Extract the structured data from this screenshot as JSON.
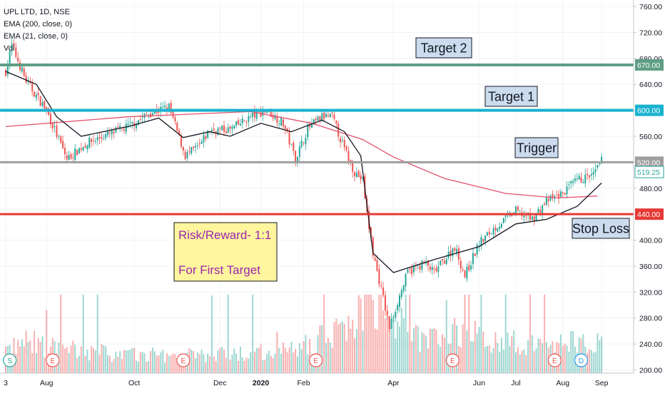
{
  "header": {
    "symbol": "UPL LTD, 1D, NSE",
    "indicators": [
      "EMA (200, close, 0)",
      "EMA (21, close, 0)",
      "Vol"
    ]
  },
  "annotations": {
    "target2": "Target 2",
    "target1": "Target 1",
    "trigger": "Trigger",
    "stop_loss": "Stop Loss",
    "risk_reward": "Risk/Reward- 1:1",
    "first_target": "For First Target"
  },
  "colors": {
    "up": "#26a69a",
    "down": "#ef5350",
    "ema200": "#e0526e",
    "ema21": "#131722",
    "target2_line": "#5e9e84",
    "target1_line": "#19b2cf",
    "trigger_line": "#9e9e9e",
    "stop_line": "#e53935",
    "callout_bg": "#ccdcee",
    "note_bg": "#fff59d",
    "note_text": "#9c27b0"
  },
  "chart_data": {
    "type": "candlestick",
    "ylim": [
      195,
      770
    ],
    "y_ticks": [
      200,
      240,
      280,
      320,
      360,
      400,
      440,
      480,
      520,
      560,
      600,
      640,
      680,
      720,
      760
    ],
    "y_tick_labels": [
      "200.00",
      "240.00",
      "280.00",
      "320.00",
      "360.00",
      "400.00",
      "440.00",
      "480.00",
      "520.00",
      "560.00",
      "600.00",
      "640.00",
      "680.00",
      "720.00",
      "760.00"
    ],
    "x_tick_labels": [
      "3",
      "Aug",
      "Oct",
      "Dec",
      "2020",
      "Feb",
      "Apr",
      "Jun",
      "Jul",
      "Aug",
      "Sep"
    ],
    "x_tick_index": [
      0,
      20,
      63,
      105,
      125,
      146,
      190,
      232,
      250,
      273,
      292
    ],
    "levels": [
      {
        "name": "Target 2",
        "value": 670,
        "label": "670.00"
      },
      {
        "name": "Target 1",
        "value": 600,
        "label": "600.00"
      },
      {
        "name": "Trigger",
        "value": 520,
        "label": "520.00"
      },
      {
        "name": "Stop Loss",
        "value": 440,
        "label": "440.00"
      }
    ],
    "last_price": {
      "value": 519.25,
      "label": "519.25"
    },
    "ema200": [
      [
        0,
        575
      ],
      [
        60,
        590
      ],
      [
        120,
        598
      ],
      [
        150,
        580
      ],
      [
        175,
        555
      ],
      [
        190,
        528
      ],
      [
        215,
        495
      ],
      [
        245,
        472
      ],
      [
        270,
        465
      ],
      [
        290,
        468
      ]
    ],
    "ema21": [
      [
        0,
        660
      ],
      [
        15,
        640
      ],
      [
        25,
        590
      ],
      [
        37,
        560
      ],
      [
        60,
        575
      ],
      [
        75,
        588
      ],
      [
        87,
        558
      ],
      [
        100,
        567
      ],
      [
        110,
        560
      ],
      [
        125,
        580
      ],
      [
        140,
        567
      ],
      [
        155,
        585
      ],
      [
        166,
        567
      ],
      [
        174,
        530
      ],
      [
        180,
        380
      ],
      [
        190,
        350
      ],
      [
        210,
        370
      ],
      [
        232,
        390
      ],
      [
        250,
        425
      ],
      [
        265,
        432
      ],
      [
        280,
        452
      ],
      [
        292,
        488
      ]
    ],
    "close_path": [
      [
        0,
        660
      ],
      [
        3,
        700
      ],
      [
        10,
        645
      ],
      [
        20,
        600
      ],
      [
        30,
        525
      ],
      [
        40,
        550
      ],
      [
        60,
        575
      ],
      [
        70,
        595
      ],
      [
        80,
        605
      ],
      [
        88,
        530
      ],
      [
        95,
        545
      ],
      [
        100,
        570
      ],
      [
        110,
        570
      ],
      [
        120,
        590
      ],
      [
        128,
        600
      ],
      [
        136,
        580
      ],
      [
        142,
        525
      ],
      [
        148,
        572
      ],
      [
        155,
        590
      ],
      [
        160,
        590
      ],
      [
        166,
        540
      ],
      [
        171,
        505
      ],
      [
        175,
        492
      ],
      [
        177,
        440
      ],
      [
        180,
        380
      ],
      [
        185,
        310
      ],
      [
        188,
        265
      ],
      [
        192,
        305
      ],
      [
        197,
        350
      ],
      [
        205,
        365
      ],
      [
        210,
        350
      ],
      [
        220,
        390
      ],
      [
        225,
        345
      ],
      [
        232,
        395
      ],
      [
        240,
        420
      ],
      [
        250,
        445
      ],
      [
        258,
        432
      ],
      [
        265,
        460
      ],
      [
        272,
        470
      ],
      [
        280,
        492
      ],
      [
        288,
        500
      ],
      [
        292,
        522
      ]
    ],
    "volume_path": [
      [
        0,
        5
      ],
      [
        10,
        7
      ],
      [
        20,
        6
      ],
      [
        40,
        5
      ],
      [
        60,
        4
      ],
      [
        100,
        4
      ],
      [
        140,
        5
      ],
      [
        170,
        11
      ],
      [
        178,
        18
      ],
      [
        185,
        14
      ],
      [
        200,
        8
      ],
      [
        220,
        9
      ],
      [
        260,
        6
      ],
      [
        292,
        8
      ]
    ],
    "events": [
      {
        "index": 2,
        "label": "S"
      },
      {
        "index": 23,
        "label": "E"
      },
      {
        "index": 87,
        "label": "E"
      },
      {
        "index": 152,
        "label": "E"
      },
      {
        "index": 219,
        "label": "E"
      },
      {
        "index": 269,
        "label": "E"
      },
      {
        "index": 282,
        "label": "D"
      }
    ]
  }
}
